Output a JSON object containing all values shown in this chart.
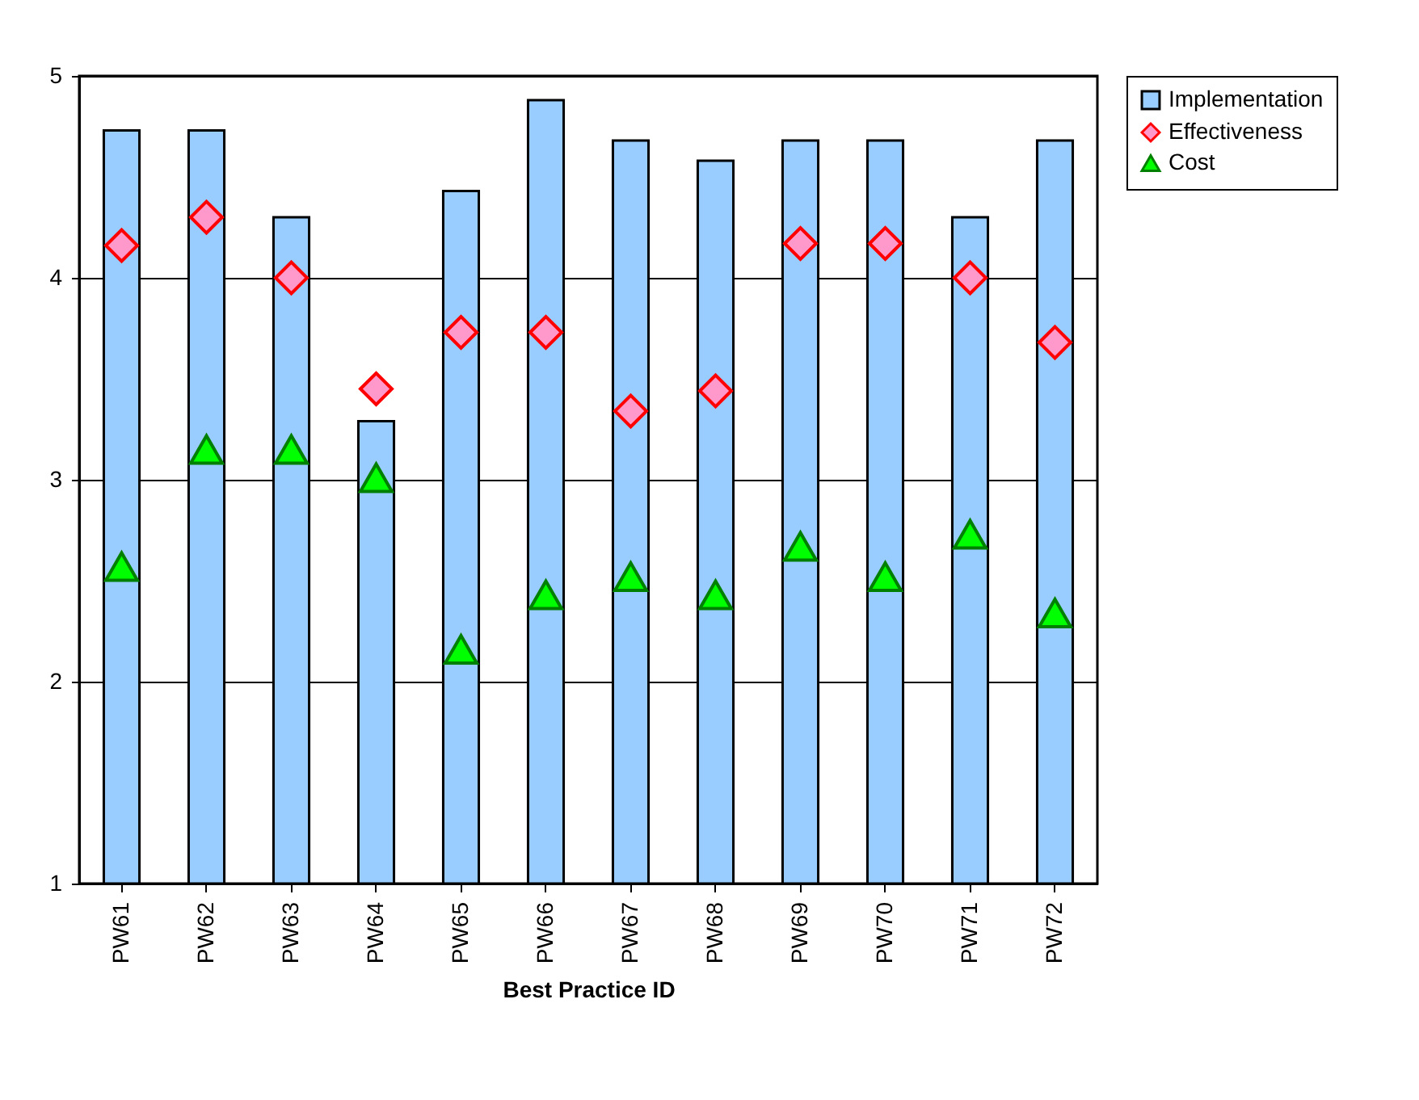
{
  "chart_data": {
    "type": "bar",
    "xlabel": "Best Practice ID",
    "categories": [
      "PW61",
      "PW62",
      "PW63",
      "PW64",
      "PW65",
      "PW66",
      "PW67",
      "PW68",
      "PW69",
      "PW70",
      "PW71",
      "PW72"
    ],
    "series": [
      {
        "name": "Implementation",
        "color": "#99ccff",
        "values": [
          4.73,
          4.73,
          4.3,
          3.29,
          4.43,
          4.88,
          4.68,
          4.58,
          4.68,
          4.68,
          4.3,
          4.68
        ]
      },
      {
        "name": "Effectiveness",
        "type": "scatter",
        "marker": "diamond",
        "color": "#ff99cc",
        "values": [
          4.16,
          4.3,
          4.0,
          3.45,
          3.73,
          3.73,
          3.34,
          3.44,
          4.17,
          4.17,
          4.0,
          3.68
        ]
      },
      {
        "name": "Cost",
        "type": "scatter",
        "marker": "triangle",
        "color": "#00ff00",
        "values": [
          2.57,
          3.15,
          3.15,
          3.01,
          2.16,
          2.43,
          2.52,
          2.43,
          2.67,
          2.52,
          2.73,
          2.34
        ]
      }
    ],
    "ylim": [
      1,
      5
    ],
    "yticks": [
      1,
      2,
      3,
      4,
      5
    ],
    "grid": "y",
    "legend": "right"
  }
}
